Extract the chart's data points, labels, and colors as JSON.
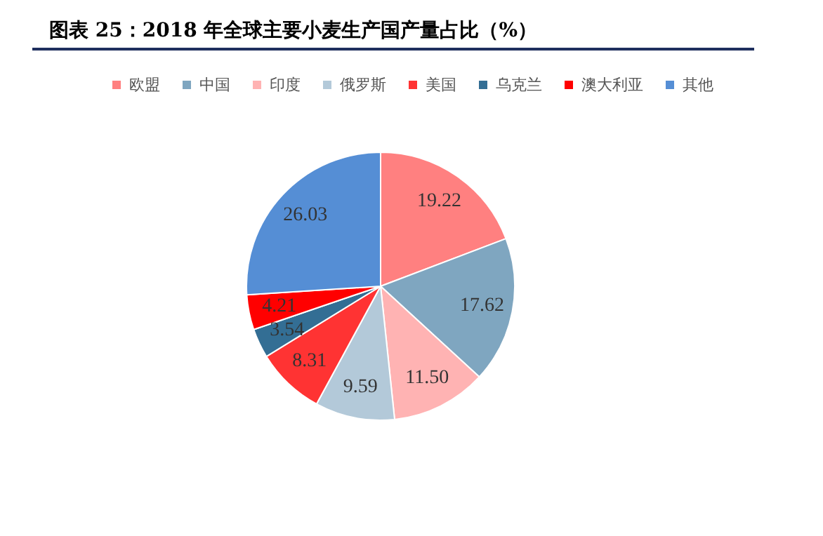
{
  "chart_data": {
    "type": "pie",
    "title": "图表 25：2018 年全球主要小麦生产国产量占比（%）",
    "categories": [
      "欧盟",
      "中国",
      "印度",
      "俄罗斯",
      "美国",
      "乌克兰",
      "澳大利亚",
      "其他"
    ],
    "values": [
      19.22,
      17.62,
      11.5,
      9.59,
      8.31,
      3.54,
      4.21,
      26.03
    ],
    "colors": [
      "#ff8080",
      "#7fa6c0",
      "#ffb3b3",
      "#b3c9d9",
      "#ff3333",
      "#336e94",
      "#ff0000",
      "#558ed5"
    ],
    "value_labels": [
      "19.22",
      "17.62",
      "11.50",
      "9.59",
      "8.31",
      "3.54",
      "4.21",
      "26.03"
    ],
    "legend": "top"
  }
}
